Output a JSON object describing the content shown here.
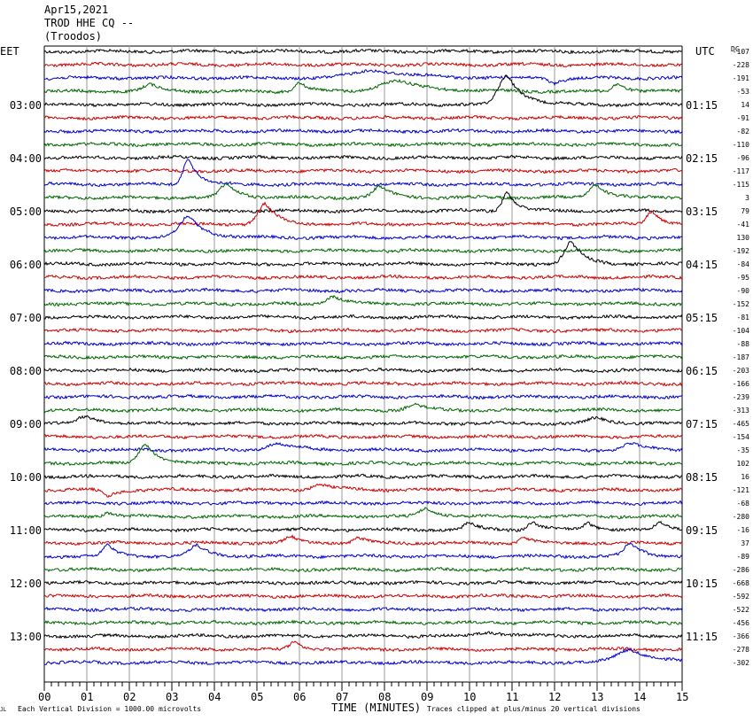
{
  "header": {
    "date": "Apr15,2021",
    "station": "TROD HHE CQ --",
    "location": "(Troodos)"
  },
  "left_label": "EET",
  "right_label": "UTC",
  "dc_label": "DC",
  "footer": {
    "scale_note": "Each Vertical Division = 1000.00 microvolts",
    "xlabel": "TIME (MINUTES)",
    "clip_note": "Traces clipped at plus/minus 20 vertical divisions",
    "corner_mark": "JL"
  },
  "colors": {
    "black": "#000000",
    "red": "#cc0000",
    "blue": "#0000cc",
    "green": "#006600",
    "grid": "#999999"
  },
  "chart_data": {
    "type": "line",
    "title": "Apr15,2021 TROD HHE CQ -- (Troodos)",
    "xlabel": "TIME (MINUTES)",
    "x_ticks": [
      "00",
      "01",
      "02",
      "03",
      "04",
      "05",
      "06",
      "07",
      "08",
      "09",
      "10",
      "11",
      "12",
      "13",
      "14",
      "15"
    ],
    "xlim": [
      0,
      15
    ],
    "eet_hour_labels": [
      "03:00",
      "04:00",
      "05:00",
      "06:00",
      "07:00",
      "08:00",
      "09:00",
      "10:00",
      "11:00",
      "12:00",
      "13:00"
    ],
    "utc_labels": [
      "01:15",
      "02:15",
      "03:15",
      "04:15",
      "05:15",
      "06:15",
      "07:15",
      "08:15",
      "09:15",
      "10:15",
      "11:15"
    ],
    "dc_offsets": [
      -107,
      -228,
      -191,
      -53,
      14,
      -91,
      -82,
      -110,
      -96,
      -117,
      -115,
      3,
      79,
      -41,
      130,
      -192,
      -84,
      -95,
      -90,
      -152,
      -81,
      -104,
      -88,
      -187,
      -203,
      -166,
      -239,
      -313,
      -465,
      -154,
      -35,
      102,
      16,
      -121,
      -68,
      -280,
      -16,
      37,
      -89,
      -286,
      -668,
      -592,
      -522,
      -456,
      -366,
      -278,
      -302
    ],
    "trace_colors": [
      "black",
      "red",
      "blue",
      "green"
    ],
    "events": [
      {
        "trace": 2,
        "t": 7.8,
        "w": 1.2,
        "a": -0.6
      },
      {
        "trace": 2,
        "t": 12.0,
        "w": 0.3,
        "a": 0.4
      },
      {
        "trace": 3,
        "t": 2.5,
        "w": 0.4,
        "a": -0.5
      },
      {
        "trace": 3,
        "t": 6.0,
        "w": 0.3,
        "a": -0.7
      },
      {
        "trace": 3,
        "t": 8.3,
        "w": 1.0,
        "a": -0.8
      },
      {
        "trace": 3,
        "t": 13.5,
        "w": 0.3,
        "a": -0.6
      },
      {
        "trace": 4,
        "t": 10.9,
        "w": 0.5,
        "a": -2.2
      },
      {
        "trace": 10,
        "t": 3.4,
        "w": 0.3,
        "a": -2.0
      },
      {
        "trace": 11,
        "t": 4.3,
        "w": 0.4,
        "a": -1.0
      },
      {
        "trace": 11,
        "t": 7.9,
        "w": 0.4,
        "a": -0.8
      },
      {
        "trace": 11,
        "t": 13.0,
        "w": 0.4,
        "a": -1.0
      },
      {
        "trace": 12,
        "t": 10.9,
        "w": 0.3,
        "a": -1.4
      },
      {
        "trace": 13,
        "t": 5.2,
        "w": 0.4,
        "a": -1.5
      },
      {
        "trace": 13,
        "t": 14.3,
        "w": 0.3,
        "a": -1.0
      },
      {
        "trace": 14,
        "t": 3.4,
        "w": 0.5,
        "a": -1.6
      },
      {
        "trace": 16,
        "t": 12.4,
        "w": 0.4,
        "a": -1.6
      },
      {
        "trace": 19,
        "t": 6.8,
        "w": 0.4,
        "a": -0.6
      },
      {
        "trace": 27,
        "t": 8.7,
        "w": 0.4,
        "a": -0.4
      },
      {
        "trace": 28,
        "t": 1.0,
        "w": 0.5,
        "a": -0.5
      },
      {
        "trace": 28,
        "t": 13.0,
        "w": 0.5,
        "a": -0.4
      },
      {
        "trace": 30,
        "t": 5.5,
        "w": 0.6,
        "a": -0.5
      },
      {
        "trace": 30,
        "t": 13.8,
        "w": 0.5,
        "a": -0.5
      },
      {
        "trace": 31,
        "t": 2.4,
        "w": 0.4,
        "a": -1.5
      },
      {
        "trace": 33,
        "t": 1.5,
        "w": 0.3,
        "a": 0.5
      },
      {
        "trace": 33,
        "t": 6.5,
        "w": 0.5,
        "a": -0.4
      },
      {
        "trace": 35,
        "t": 9.0,
        "w": 0.4,
        "a": -0.6
      },
      {
        "trace": 35,
        "t": 1.5,
        "w": 0.3,
        "a": -0.3
      },
      {
        "trace": 36,
        "t": 10.0,
        "w": 0.3,
        "a": -0.5
      },
      {
        "trace": 36,
        "t": 11.5,
        "w": 0.3,
        "a": -0.6
      },
      {
        "trace": 36,
        "t": 12.8,
        "w": 0.3,
        "a": -0.5
      },
      {
        "trace": 36,
        "t": 14.5,
        "w": 0.3,
        "a": -0.5
      },
      {
        "trace": 37,
        "t": 5.8,
        "w": 0.3,
        "a": -0.5
      },
      {
        "trace": 37,
        "t": 7.4,
        "w": 0.3,
        "a": -0.4
      },
      {
        "trace": 37,
        "t": 11.3,
        "w": 0.3,
        "a": -0.4
      },
      {
        "trace": 38,
        "t": 1.5,
        "w": 0.3,
        "a": -0.8
      },
      {
        "trace": 38,
        "t": 3.6,
        "w": 0.4,
        "a": -0.8
      },
      {
        "trace": 38,
        "t": 13.8,
        "w": 0.4,
        "a": -0.9
      },
      {
        "trace": 44,
        "t": 10.5,
        "w": 0.6,
        "a": -0.3
      },
      {
        "trace": 45,
        "t": 5.9,
        "w": 0.3,
        "a": -0.6
      },
      {
        "trace": 46,
        "t": 13.8,
        "w": 0.8,
        "a": -1.0
      }
    ]
  }
}
